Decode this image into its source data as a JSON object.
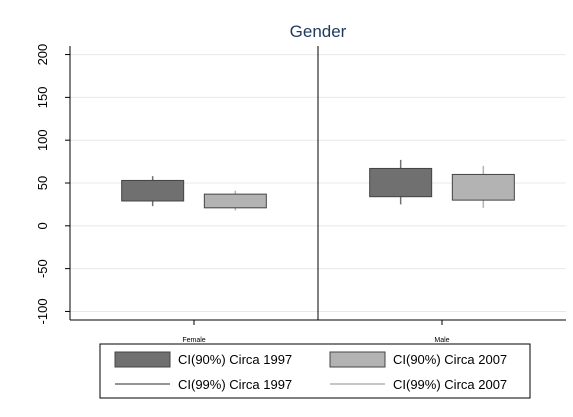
{
  "chart_data": {
    "type": "box",
    "title": "Gender",
    "categories": [
      "Female",
      "Male"
    ],
    "ylim": [
      -110,
      210
    ],
    "yticks": [
      -100,
      -50,
      0,
      50,
      100,
      150,
      200
    ],
    "grid": true,
    "legend_position": "bottom",
    "series": [
      {
        "name": "CI(90%) Circa 1997",
        "ci99_name": "CI(99%) Circa 1997",
        "color": "#707070",
        "values": [
          {
            "category": "Female",
            "ci90_low": 29,
            "ci90_high": 53,
            "ci99_low": 23,
            "ci99_high": 58
          },
          {
            "category": "Male",
            "ci90_low": 34,
            "ci90_high": 67,
            "ci99_low": 25,
            "ci99_high": 77
          }
        ]
      },
      {
        "name": "CI(90%) Circa 2007",
        "ci99_name": "CI(99%) Circa 2007",
        "color": "#b3b3b3",
        "values": [
          {
            "category": "Female",
            "ci90_low": 21,
            "ci90_high": 37,
            "ci99_low": 18,
            "ci99_high": 41
          },
          {
            "category": "Male",
            "ci90_low": 30,
            "ci90_high": 60,
            "ci99_low": 21,
            "ci99_high": 70
          }
        ]
      }
    ]
  }
}
